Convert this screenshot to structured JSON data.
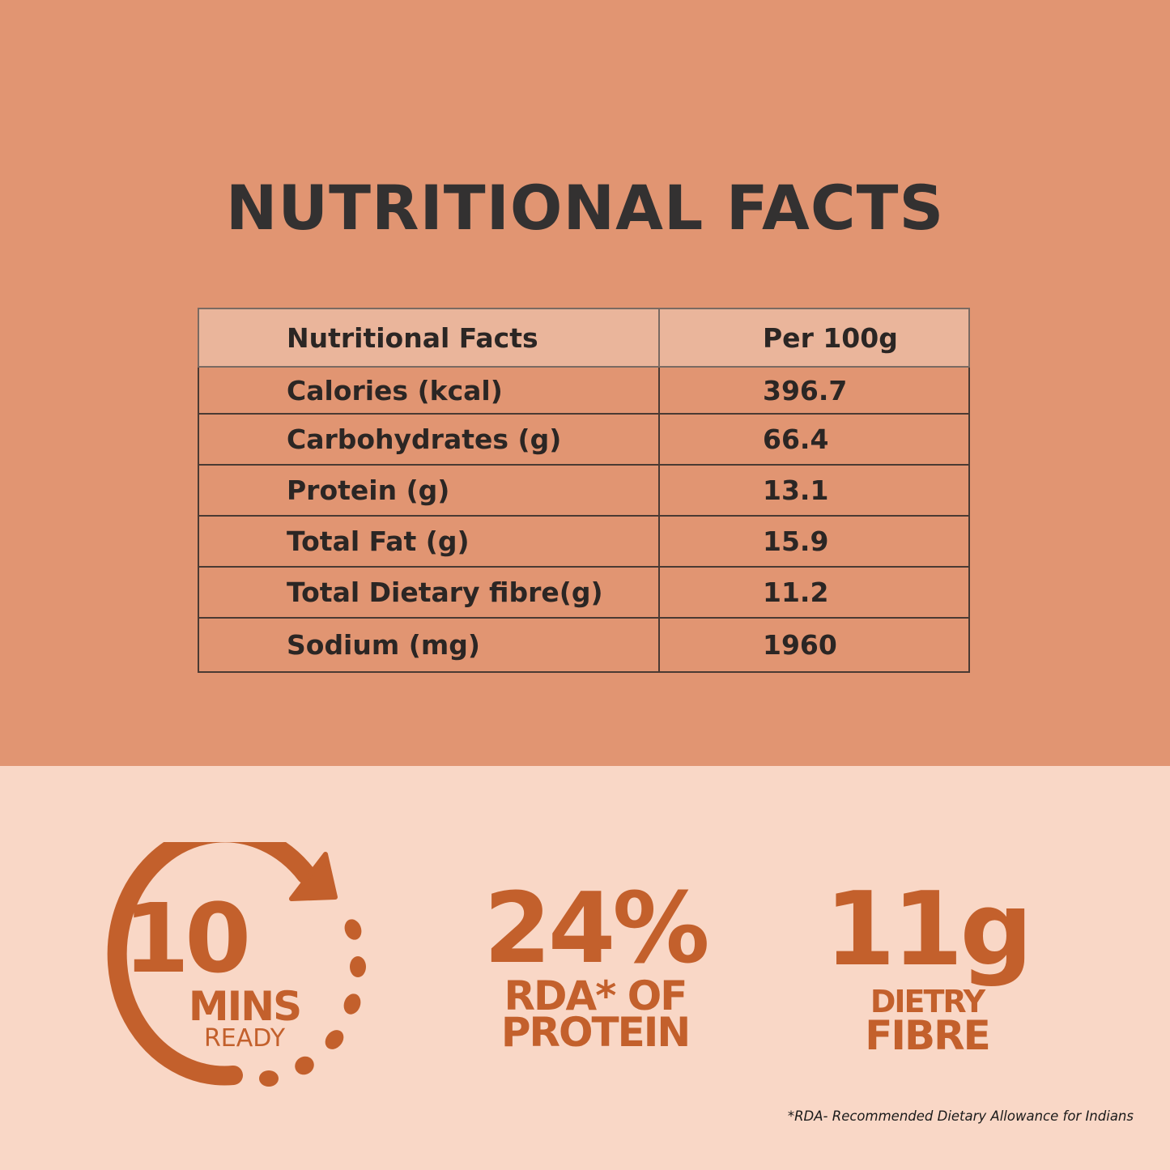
{
  "title": "NUTRITIONAL FACTS",
  "table": {
    "headers": [
      "Nutritional Facts",
      "Per 100g"
    ],
    "rows": [
      [
        "Calories (kcal)",
        "396.7"
      ],
      [
        "Carbohydrates (g)",
        "66.4"
      ],
      [
        "Protein (g)",
        "13.1"
      ],
      [
        "Total Fat (g)",
        "15.9"
      ],
      [
        "Total Dietary fibre(g)",
        "11.2"
      ],
      [
        "Sodium (mg)",
        "1960"
      ]
    ]
  },
  "highlights": {
    "timer": {
      "number": "10",
      "unit": "MINS",
      "label": "READY",
      "icon": "clock-arrow-icon"
    },
    "protein": {
      "value": "24%",
      "line1": "RDA* OF",
      "line2": "PROTEIN"
    },
    "fibre": {
      "value": "11g",
      "line1": "DIETRY",
      "line2": "FIBRE"
    }
  },
  "footnote": "*RDA- Recommended Dietary Allowance for Indians",
  "colors": {
    "top_background": "#e19572",
    "bottom_background": "#f9d7c6",
    "header_row": "#eab59b",
    "accent": "#c3602c",
    "title_text": "#333131"
  }
}
